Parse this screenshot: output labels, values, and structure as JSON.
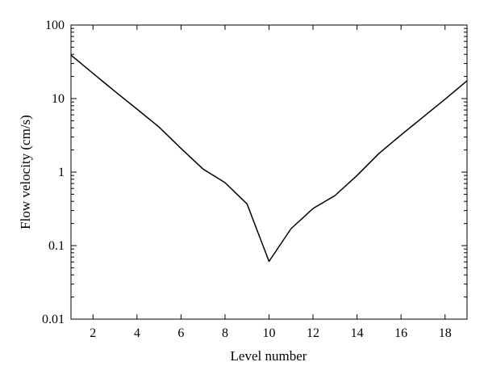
{
  "chart_data": {
    "type": "line",
    "title": "",
    "xlabel": "Level number",
    "ylabel": "Flow velocity (cm/s)",
    "x_scale": "linear",
    "y_scale": "log",
    "xlim": [
      1,
      19
    ],
    "ylim": [
      0.01,
      100
    ],
    "x_ticks": [
      2,
      4,
      6,
      8,
      10,
      12,
      14,
      16,
      18
    ],
    "x_tick_labels": [
      "2",
      "4",
      "6",
      "8",
      "10",
      "12",
      "14",
      "16",
      "18"
    ],
    "y_ticks": [
      0.01,
      0.1,
      1,
      10,
      100
    ],
    "y_tick_labels": [
      "0.01",
      "0.1",
      "1",
      "10",
      "100"
    ],
    "grid": false,
    "legend": "none",
    "line_color": "#000000",
    "series": [
      {
        "x": [
          1,
          2,
          3,
          4,
          5,
          6,
          7,
          8,
          9,
          10,
          11,
          12,
          13,
          14,
          15,
          16,
          17,
          18,
          19
        ],
        "y": [
          39,
          22,
          12.5,
          7.2,
          4.1,
          2.1,
          1.1,
          0.72,
          0.37,
          0.061,
          0.17,
          0.32,
          0.48,
          0.9,
          1.8,
          3.2,
          5.6,
          9.8,
          17.5
        ]
      }
    ]
  }
}
